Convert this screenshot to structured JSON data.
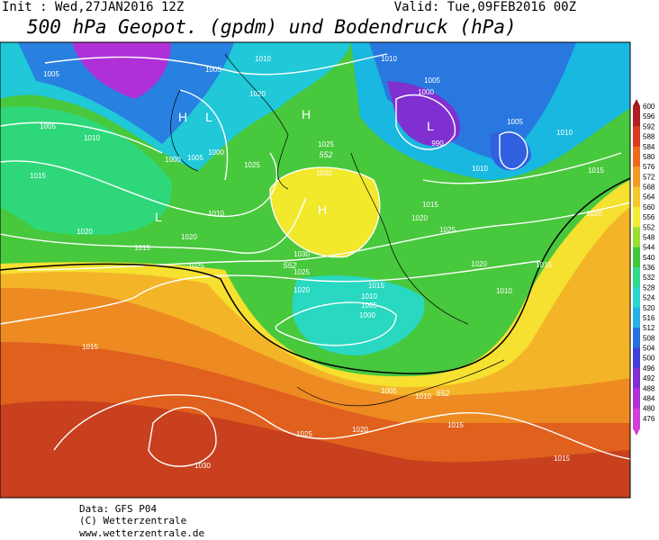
{
  "header": {
    "init": "Init : Wed,27JAN2016 12Z",
    "valid": "Valid: Tue,09FEB2016 00Z",
    "title": "500 hPa Geopot. (gpdm) und Bodendruck (hPa)"
  },
  "map": {
    "isobar_labels": [
      1005,
      1005,
      1010,
      1010,
      1005,
      1000,
      990,
      1005,
      1010,
      1005,
      1010,
      1000,
      1005,
      1000,
      1020,
      1025,
      1015,
      1020,
      1015,
      1010,
      1020,
      1025,
      1030,
      1025,
      1010,
      1015,
      1020,
      1025,
      1030,
      1025,
      1020,
      1015,
      1010,
      1005,
      1000,
      1020,
      1010,
      1015,
      1020,
      1015,
      1015,
      1005,
      1010,
      1015,
      1020,
      1025,
      1030,
      1015
    ],
    "pressure_centers": [
      "H",
      "L",
      "H",
      "H",
      "L",
      "L"
    ],
    "height_labels": [
      552,
      552,
      552
    ]
  },
  "colorbar": {
    "labels": [
      600,
      596,
      592,
      588,
      584,
      580,
      576,
      572,
      568,
      564,
      560,
      556,
      552,
      548,
      544,
      540,
      536,
      532,
      528,
      524,
      520,
      516,
      512,
      508,
      504,
      500,
      496,
      492,
      488,
      484,
      480,
      476
    ]
  },
  "footer": {
    "data": "Data: GFS P04",
    "copyright": "(C) Wetterzentrale",
    "url": "www.wetterzentrale.de"
  }
}
